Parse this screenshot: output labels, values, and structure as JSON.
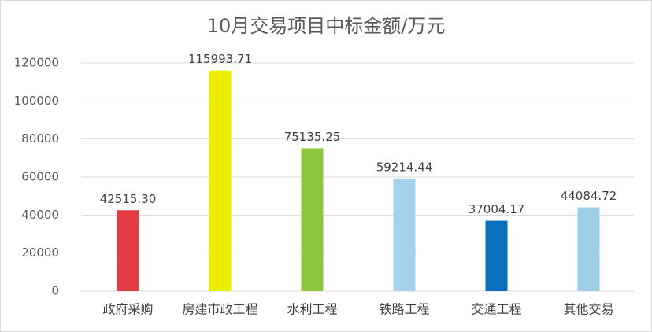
{
  "chart_data": {
    "type": "bar",
    "title": "10月交易项目中标金额/万元",
    "categories": [
      "政府采购",
      "房建市政工程",
      "水利工程",
      "铁路工程",
      "交通工程",
      "其他交易"
    ],
    "values": [
      42515.3,
      115993.71,
      75135.25,
      59214.44,
      37004.17,
      44084.72
    ],
    "value_labels": [
      "42515.30",
      "115993.71",
      "75135.25",
      "59214.44",
      "37004.17",
      "44084.72"
    ],
    "colors": [
      "#e53a3f",
      "#ecec00",
      "#8cc63e",
      "#a6d3eb",
      "#0a6fbd",
      "#9fcfe8"
    ],
    "ylim": [
      0,
      120000
    ],
    "yticks": [
      0,
      20000,
      40000,
      60000,
      80000,
      100000,
      120000
    ],
    "grid": true
  }
}
